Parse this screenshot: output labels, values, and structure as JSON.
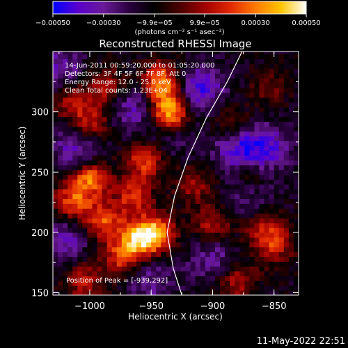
{
  "chart_data": {
    "type": "heatmap",
    "title": "Reconstructed RHESSI Image",
    "xlabel": "Heliocentric X (arcsec)",
    "ylabel": "Heliocentric Y (arcsec)",
    "xlim": [
      -1030,
      -830
    ],
    "ylim": [
      148,
      350
    ],
    "xticks": [
      -1000,
      -950,
      -900,
      -850
    ],
    "yticks": [
      150,
      200,
      250,
      300
    ],
    "xtick_labels": [
      "−1000",
      "−950",
      "−900",
      "−850"
    ],
    "ytick_labels": [
      "150",
      "200",
      "250",
      "300"
    ],
    "colorbar": {
      "range": [
        -0.0005,
        0.0005
      ],
      "tick_values": [
        -0.0005,
        -0.0003,
        -9.9e-05,
        9.9e-05,
        0.0003,
        0.0005
      ],
      "tick_labels": [
        "−0.00050",
        "−0.00030",
        "−9.9e−05",
        "9.9e−05",
        "0.00030",
        "0.00050"
      ],
      "units_label": "(photons cm⁻² s⁻¹ asec⁻²)",
      "colormap": [
        "#0000ff",
        "#5a00cc",
        "#6a1a98",
        "#2b0040",
        "#000000",
        "#4a0000",
        "#a00000",
        "#e02800",
        "#ff7a00",
        "#ffc400",
        "#ffffff"
      ]
    },
    "annotations": [
      "14-Jun-2011 00:59:20.000 to 01:05:20.000",
      "Detectors: 3F 4F 5F 6F 7F 8F, Att 0",
      "Energy Range: 12.0 - 25.0 keV",
      "Clean    Total counts: 1.23E+04"
    ],
    "peak_label": "Position of Peak = [-939,292]",
    "peak": [
      -939,
      292
    ],
    "limb": [
      [
        -925,
        148
      ],
      [
        -932,
        170
      ],
      [
        -937,
        200
      ],
      [
        -931,
        230
      ],
      [
        -920,
        262
      ],
      [
        -905,
        295
      ],
      [
        -888,
        325
      ],
      [
        -876,
        350
      ]
    ],
    "bright_regions": [
      {
        "x": -935,
        "y": 300,
        "value": 0.0005
      },
      {
        "x": -942,
        "y": 325,
        "value": 0.00042
      },
      {
        "x": -955,
        "y": 260,
        "value": 0.0003
      },
      {
        "x": -1000,
        "y": 245,
        "value": 0.00038
      },
      {
        "x": -1015,
        "y": 225,
        "value": 0.00028
      },
      {
        "x": -990,
        "y": 210,
        "value": 0.00032
      },
      {
        "x": -960,
        "y": 195,
        "value": 0.00042
      },
      {
        "x": -945,
        "y": 200,
        "value": 0.00035
      },
      {
        "x": -975,
        "y": 180,
        "value": 0.00026
      },
      {
        "x": -1005,
        "y": 160,
        "value": 0.0002
      },
      {
        "x": -1000,
        "y": 290,
        "value": 0.00026
      },
      {
        "x": -985,
        "y": 320,
        "value": 0.00022
      },
      {
        "x": -1015,
        "y": 310,
        "value": 0.0002
      },
      {
        "x": -965,
        "y": 230,
        "value": 0.00024
      },
      {
        "x": -900,
        "y": 205,
        "value": 0.00022
      },
      {
        "x": -880,
        "y": 160,
        "value": 0.0002
      },
      {
        "x": -860,
        "y": 205,
        "value": 0.00018
      },
      {
        "x": -850,
        "y": 190,
        "value": 0.00022
      },
      {
        "x": -915,
        "y": 240,
        "value": 0.00016
      },
      {
        "x": -870,
        "y": 245,
        "value": 0.00014
      },
      {
        "x": -885,
        "y": 290,
        "value": 0.00014
      },
      {
        "x": -855,
        "y": 320,
        "value": 0.0001
      }
    ],
    "dark_regions": [
      {
        "x": -910,
        "y": 320,
        "value": -0.00028
      },
      {
        "x": -880,
        "y": 270,
        "value": -0.00026
      },
      {
        "x": -855,
        "y": 270,
        "value": -0.00024
      },
      {
        "x": -1010,
        "y": 270,
        "value": -0.00025
      },
      {
        "x": -1020,
        "y": 195,
        "value": -0.0002
      },
      {
        "x": -965,
        "y": 305,
        "value": -0.0002
      },
      {
        "x": -900,
        "y": 180,
        "value": -0.00018
      },
      {
        "x": -870,
        "y": 230,
        "value": -0.00016
      },
      {
        "x": -950,
        "y": 160,
        "value": -0.00015
      },
      {
        "x": -1025,
        "y": 335,
        "value": -0.0002
      },
      {
        "x": -935,
        "y": 280,
        "value": -0.00012
      }
    ]
  },
  "footer": {
    "timestamp": "11-May-2022 22:51"
  }
}
